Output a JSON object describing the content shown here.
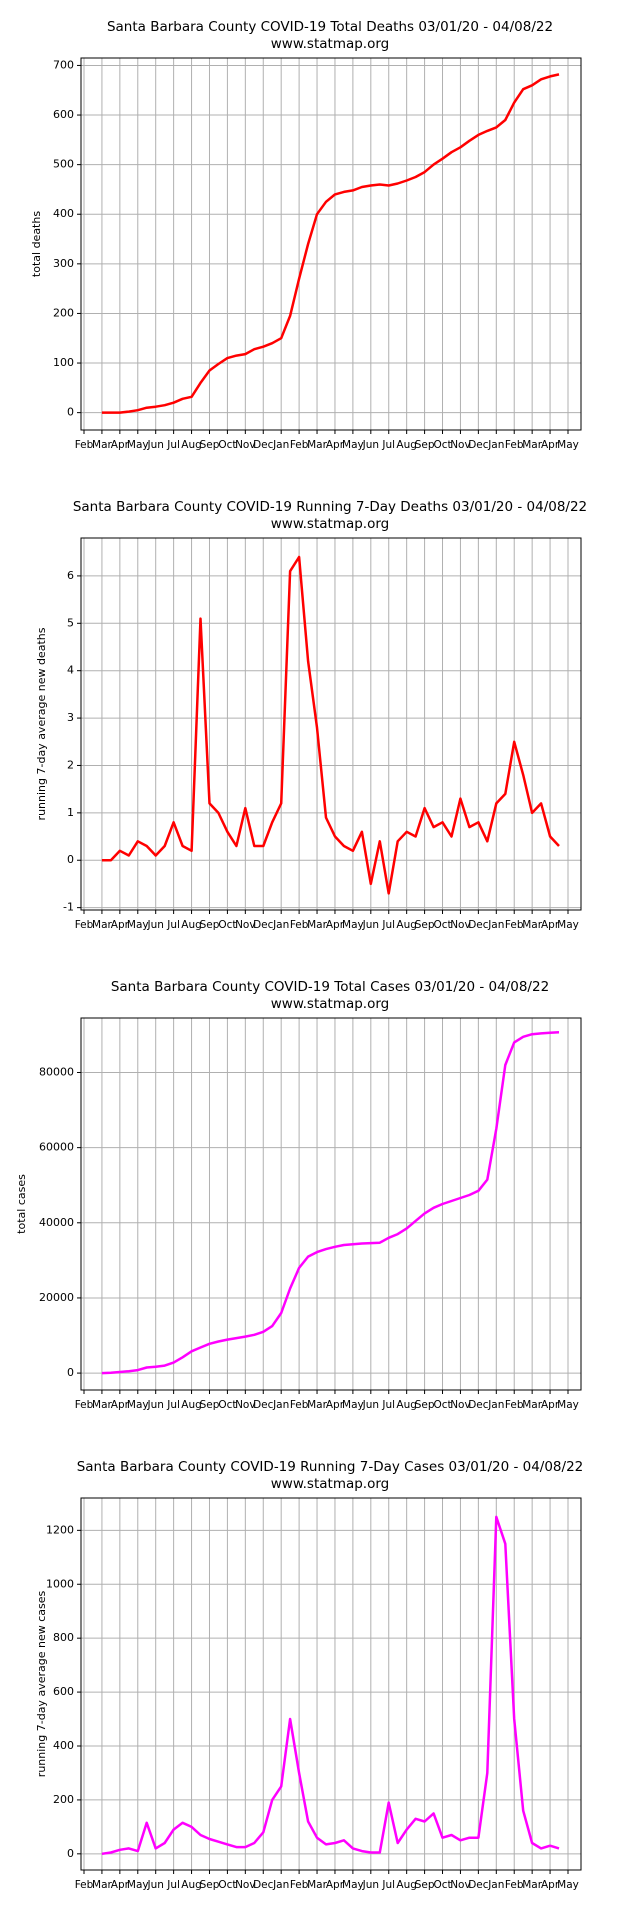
{
  "chart_data": [
    {
      "type": "line",
      "title": "Santa Barbara County COVID-19 Total Deaths 03/01/20 - 04/08/22",
      "subtitle": "www.statmap.org",
      "ylabel": "total deaths",
      "categories": [
        "Feb",
        null,
        "Mar",
        null,
        "Apr",
        null,
        "May",
        null,
        "Jun",
        null,
        "Jul",
        null,
        "Aug",
        null,
        "Sep",
        null,
        "Oct",
        null,
        "Nov",
        null,
        "Dec",
        null,
        "Jan",
        null,
        "Feb",
        null,
        "Mar",
        null,
        "Apr",
        null,
        "May",
        null,
        "Jun",
        null,
        "Jul",
        null,
        "Aug",
        null,
        "Sep",
        null,
        "Oct",
        null,
        "Nov",
        null,
        "Dec",
        null,
        "Jan",
        null,
        "Feb",
        null,
        "Mar",
        null,
        "Apr",
        null,
        "May"
      ],
      "values": [
        null,
        null,
        0,
        0,
        0,
        2,
        5,
        10,
        12,
        15,
        20,
        28,
        32,
        60,
        85,
        98,
        110,
        115,
        118,
        128,
        133,
        140,
        150,
        195,
        270,
        340,
        400,
        425,
        440,
        445,
        448,
        455,
        458,
        460,
        458,
        462,
        468,
        475,
        485,
        500,
        512,
        525,
        535,
        548,
        560,
        568,
        575,
        590,
        625,
        652,
        660,
        672,
        678,
        682,
        null
      ],
      "color": "#ff0000",
      "ylim": [
        -35,
        715
      ],
      "yticks": [
        0,
        100,
        200,
        300,
        400,
        500,
        600,
        700
      ],
      "grid": true
    },
    {
      "type": "line",
      "title": "Santa Barbara County COVID-19 Running 7-Day Deaths 03/01/20 - 04/08/22",
      "subtitle": "www.statmap.org",
      "ylabel": "running 7-day average new deaths",
      "categories": [
        "Feb",
        null,
        "Mar",
        null,
        "Apr",
        null,
        "May",
        null,
        "Jun",
        null,
        "Jul",
        null,
        "Aug",
        null,
        "Sep",
        null,
        "Oct",
        null,
        "Nov",
        null,
        "Dec",
        null,
        "Jan",
        null,
        "Feb",
        null,
        "Mar",
        null,
        "Apr",
        null,
        "May",
        null,
        "Jun",
        null,
        "Jul",
        null,
        "Aug",
        null,
        "Sep",
        null,
        "Oct",
        null,
        "Nov",
        null,
        "Dec",
        null,
        "Jan",
        null,
        "Feb",
        null,
        "Mar",
        null,
        "Apr",
        null,
        "May"
      ],
      "values": [
        null,
        null,
        0,
        0,
        0.2,
        0.1,
        0.4,
        0.3,
        0.1,
        0.3,
        0.8,
        0.3,
        0.2,
        5.1,
        1.2,
        1.0,
        0.6,
        0.3,
        1.1,
        0.3,
        0.3,
        0.8,
        1.2,
        6.1,
        6.4,
        4.2,
        2.8,
        0.9,
        0.5,
        0.3,
        0.2,
        0.6,
        -0.5,
        0.4,
        -0.7,
        0.4,
        0.6,
        0.5,
        1.1,
        0.7,
        0.8,
        0.5,
        1.3,
        0.7,
        0.8,
        0.4,
        1.2,
        1.4,
        2.5,
        1.8,
        1.0,
        1.2,
        0.5,
        0.3,
        null
      ],
      "color": "#ff0000",
      "ylim": [
        -1.05,
        6.8
      ],
      "yticks": [
        -1,
        0,
        1,
        2,
        3,
        4,
        5,
        6
      ],
      "grid": true
    },
    {
      "type": "line",
      "title": "Santa Barbara County COVID-19 Total Cases 03/01/20 - 04/08/22",
      "subtitle": "www.statmap.org",
      "ylabel": "total cases",
      "categories": [
        "Feb",
        null,
        "Mar",
        null,
        "Apr",
        null,
        "May",
        null,
        "Jun",
        null,
        "Jul",
        null,
        "Aug",
        null,
        "Sep",
        null,
        "Oct",
        null,
        "Nov",
        null,
        "Dec",
        null,
        "Jan",
        null,
        "Feb",
        null,
        "Mar",
        null,
        "Apr",
        null,
        "May",
        null,
        "Jun",
        null,
        "Jul",
        null,
        "Aug",
        null,
        "Sep",
        null,
        "Oct",
        null,
        "Nov",
        null,
        "Dec",
        null,
        "Jan",
        null,
        "Feb",
        null,
        "Mar",
        null,
        "Apr",
        null,
        "May"
      ],
      "values": [
        null,
        null,
        0,
        100,
        300,
        500,
        800,
        1500,
        1700,
        2000,
        2800,
        4200,
        5800,
        6800,
        7800,
        8400,
        8900,
        9300,
        9700,
        10200,
        11000,
        12500,
        16000,
        22500,
        28000,
        31000,
        32200,
        33000,
        33600,
        34100,
        34300,
        34500,
        34600,
        34700,
        36000,
        37000,
        38500,
        40500,
        42500,
        44000,
        45000,
        45800,
        46600,
        47400,
        48500,
        51500,
        65000,
        82000,
        88000,
        89500,
        90200,
        90400,
        90600,
        90700,
        null
      ],
      "color": "#ff00ff",
      "ylim": [
        -4500,
        94500
      ],
      "yticks": [
        0,
        20000,
        40000,
        60000,
        80000
      ],
      "grid": true
    },
    {
      "type": "line",
      "title": "Santa Barbara County COVID-19 Running 7-Day Cases 03/01/20 - 04/08/22",
      "subtitle": "www.statmap.org",
      "ylabel": "running 7-day average new cases",
      "categories": [
        "Feb",
        null,
        "Mar",
        null,
        "Apr",
        null,
        "May",
        null,
        "Jun",
        null,
        "Jul",
        null,
        "Aug",
        null,
        "Sep",
        null,
        "Oct",
        null,
        "Nov",
        null,
        "Dec",
        null,
        "Jan",
        null,
        "Feb",
        null,
        "Mar",
        null,
        "Apr",
        null,
        "May",
        null,
        "Jun",
        null,
        "Jul",
        null,
        "Aug",
        null,
        "Sep",
        null,
        "Oct",
        null,
        "Nov",
        null,
        "Dec",
        null,
        "Jan",
        null,
        "Feb",
        null,
        "Mar",
        null,
        "Apr",
        null,
        "May"
      ],
      "values": [
        null,
        null,
        0,
        5,
        15,
        20,
        10,
        115,
        20,
        40,
        90,
        115,
        100,
        70,
        55,
        45,
        35,
        25,
        25,
        40,
        80,
        200,
        250,
        500,
        300,
        120,
        60,
        35,
        40,
        50,
        20,
        10,
        5,
        5,
        190,
        40,
        90,
        130,
        120,
        150,
        60,
        70,
        50,
        60,
        60,
        300,
        1250,
        1150,
        500,
        160,
        40,
        20,
        30,
        20,
        null
      ],
      "color": "#ff00ff",
      "ylim": [
        -60,
        1320
      ],
      "yticks": [
        0,
        200,
        400,
        600,
        800,
        1000,
        1200
      ],
      "grid": true
    }
  ]
}
